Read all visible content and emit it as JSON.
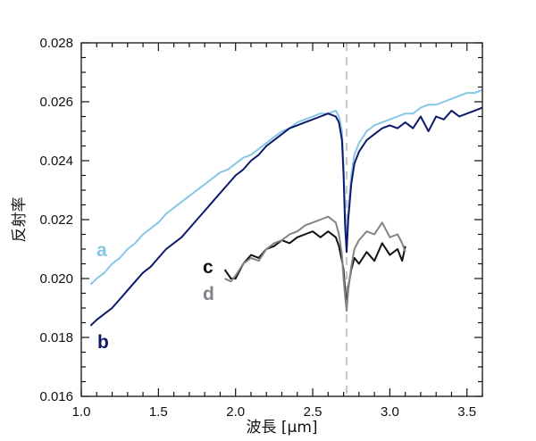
{
  "chart_data": {
    "type": "line",
    "xlabel": "波長 [μm]",
    "ylabel": "反射率",
    "xlim": [
      1.0,
      3.6
    ],
    "ylim": [
      0.016,
      0.028
    ],
    "xticks": [
      "1.0",
      "1.5",
      "2.0",
      "2.5",
      "3.0",
      "3.5"
    ],
    "yticks": [
      "0.016",
      "0.018",
      "0.020",
      "0.022",
      "0.024",
      "0.026",
      "0.028"
    ],
    "grid": false,
    "reference_line": {
      "x": 2.72,
      "style": "dashed",
      "color": "#c8c8c8"
    },
    "series": [
      {
        "name": "a",
        "color": "#87c6e6",
        "x": [
          1.06,
          1.1,
          1.15,
          1.2,
          1.25,
          1.3,
          1.35,
          1.4,
          1.45,
          1.5,
          1.55,
          1.6,
          1.65,
          1.7,
          1.75,
          1.8,
          1.85,
          1.9,
          1.95,
          2.0,
          2.05,
          2.1,
          2.15,
          2.2,
          2.25,
          2.3,
          2.35,
          2.4,
          2.45,
          2.5,
          2.55,
          2.6,
          2.65,
          2.67,
          2.69,
          2.7,
          2.71,
          2.72,
          2.73,
          2.75,
          2.77,
          2.8,
          2.85,
          2.9,
          2.95,
          3.0,
          3.05,
          3.1,
          3.15,
          3.2,
          3.25,
          3.3,
          3.35,
          3.4,
          3.45,
          3.5,
          3.55,
          3.6
        ],
        "values": [
          0.0198,
          0.02,
          0.0202,
          0.0205,
          0.0207,
          0.021,
          0.0212,
          0.0215,
          0.0217,
          0.0219,
          0.0222,
          0.0224,
          0.0226,
          0.0228,
          0.023,
          0.0232,
          0.0234,
          0.0236,
          0.0237,
          0.0239,
          0.0241,
          0.0242,
          0.0244,
          0.0246,
          0.0248,
          0.025,
          0.0251,
          0.0253,
          0.0254,
          0.0255,
          0.0256,
          0.0256,
          0.0257,
          0.0255,
          0.025,
          0.0238,
          0.0222,
          0.0212,
          0.0222,
          0.0235,
          0.0242,
          0.0246,
          0.025,
          0.0252,
          0.0253,
          0.0254,
          0.0255,
          0.0256,
          0.0256,
          0.0258,
          0.0259,
          0.0259,
          0.026,
          0.0261,
          0.0262,
          0.0263,
          0.0263,
          0.0264
        ]
      },
      {
        "name": "b",
        "color": "#0d1a6b",
        "x": [
          1.06,
          1.1,
          1.15,
          1.2,
          1.25,
          1.3,
          1.35,
          1.4,
          1.45,
          1.5,
          1.55,
          1.6,
          1.65,
          1.7,
          1.75,
          1.8,
          1.85,
          1.9,
          1.95,
          2.0,
          2.05,
          2.1,
          2.15,
          2.2,
          2.25,
          2.3,
          2.35,
          2.4,
          2.45,
          2.5,
          2.55,
          2.6,
          2.65,
          2.67,
          2.69,
          2.7,
          2.71,
          2.72,
          2.73,
          2.75,
          2.77,
          2.8,
          2.85,
          2.9,
          2.95,
          3.0,
          3.05,
          3.1,
          3.15,
          3.2,
          3.25,
          3.3,
          3.35,
          3.4,
          3.45,
          3.5,
          3.55,
          3.6
        ],
        "values": [
          0.0184,
          0.0186,
          0.0188,
          0.019,
          0.0193,
          0.0196,
          0.0199,
          0.0202,
          0.0204,
          0.0207,
          0.021,
          0.0212,
          0.0214,
          0.0217,
          0.022,
          0.0223,
          0.0226,
          0.0229,
          0.0232,
          0.0235,
          0.0237,
          0.024,
          0.0242,
          0.0245,
          0.0247,
          0.0249,
          0.0251,
          0.0252,
          0.0253,
          0.0254,
          0.0255,
          0.0256,
          0.0255,
          0.0253,
          0.0247,
          0.0235,
          0.0218,
          0.0209,
          0.022,
          0.0232,
          0.0239,
          0.0243,
          0.0247,
          0.0249,
          0.0251,
          0.0252,
          0.0251,
          0.0253,
          0.0251,
          0.0255,
          0.025,
          0.0255,
          0.0254,
          0.0257,
          0.0255,
          0.0256,
          0.0257,
          0.0258
        ]
      },
      {
        "name": "c",
        "color": "#111111",
        "x": [
          1.93,
          1.97,
          2.0,
          2.05,
          2.1,
          2.15,
          2.2,
          2.25,
          2.3,
          2.35,
          2.4,
          2.45,
          2.5,
          2.55,
          2.6,
          2.65,
          2.67,
          2.69,
          2.7,
          2.71,
          2.72,
          2.73,
          2.75,
          2.77,
          2.8,
          2.85,
          2.9,
          2.95,
          3.0,
          3.05,
          3.08,
          3.1
        ],
        "values": [
          0.0203,
          0.02,
          0.02,
          0.0205,
          0.0208,
          0.0207,
          0.021,
          0.0211,
          0.0213,
          0.0212,
          0.0214,
          0.0215,
          0.0216,
          0.0214,
          0.0216,
          0.0214,
          0.0211,
          0.0206,
          0.0203,
          0.0196,
          0.0191,
          0.0197,
          0.0203,
          0.0207,
          0.0205,
          0.0209,
          0.0206,
          0.0212,
          0.0208,
          0.021,
          0.0206,
          0.0211
        ]
      },
      {
        "name": "d",
        "color": "#808488",
        "x": [
          1.93,
          1.97,
          2.0,
          2.05,
          2.1,
          2.15,
          2.2,
          2.25,
          2.3,
          2.35,
          2.4,
          2.45,
          2.5,
          2.55,
          2.6,
          2.65,
          2.67,
          2.69,
          2.7,
          2.71,
          2.72,
          2.73,
          2.75,
          2.77,
          2.8,
          2.85,
          2.9,
          2.95,
          3.0,
          3.05,
          3.08,
          3.1
        ],
        "values": [
          0.02,
          0.0199,
          0.0201,
          0.0205,
          0.0207,
          0.0206,
          0.021,
          0.0212,
          0.0213,
          0.0215,
          0.0216,
          0.0218,
          0.0219,
          0.022,
          0.0221,
          0.0219,
          0.0215,
          0.0208,
          0.02,
          0.0194,
          0.0189,
          0.0196,
          0.0204,
          0.021,
          0.0213,
          0.0216,
          0.0215,
          0.0219,
          0.0214,
          0.0215,
          0.0212,
          0.0209
        ]
      }
    ]
  }
}
